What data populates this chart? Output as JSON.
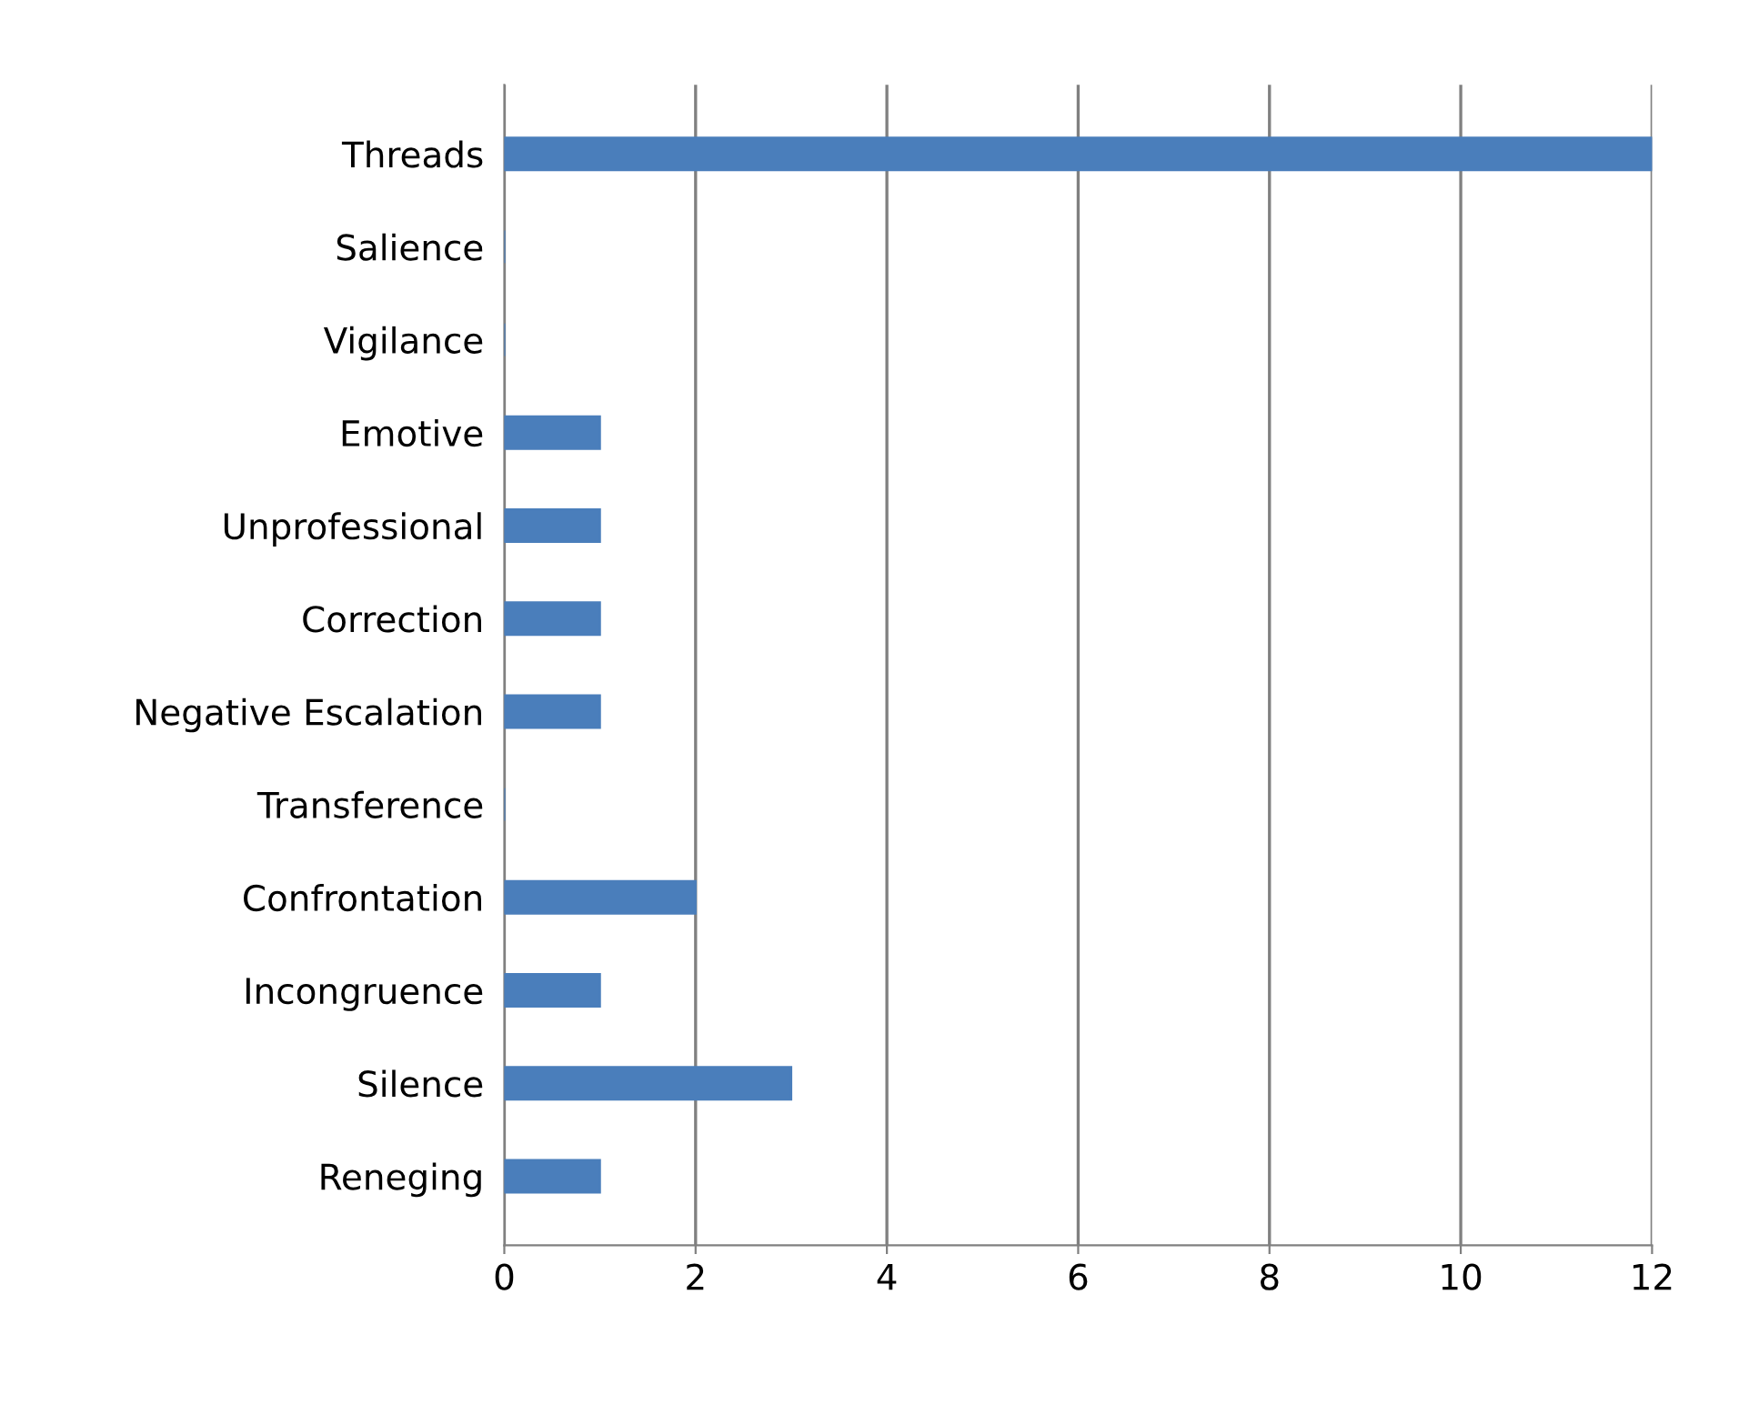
{
  "chart_data": {
    "type": "bar",
    "orientation": "horizontal",
    "categories": [
      "Threads",
      "Salience",
      "Vigilance",
      "Emotive",
      "Unprofessional",
      "Correction",
      "Negative Escalation",
      "Transference",
      "Confrontation",
      "Incongruence",
      "Silence",
      "Reneging"
    ],
    "values": [
      12,
      0,
      0,
      1,
      1,
      1,
      1,
      0,
      2,
      1,
      3,
      1
    ],
    "color": "#4a7ebb",
    "xlim": [
      0,
      12
    ],
    "xticks": [
      0,
      2,
      4,
      6,
      8,
      10,
      12
    ],
    "grid": "x"
  }
}
